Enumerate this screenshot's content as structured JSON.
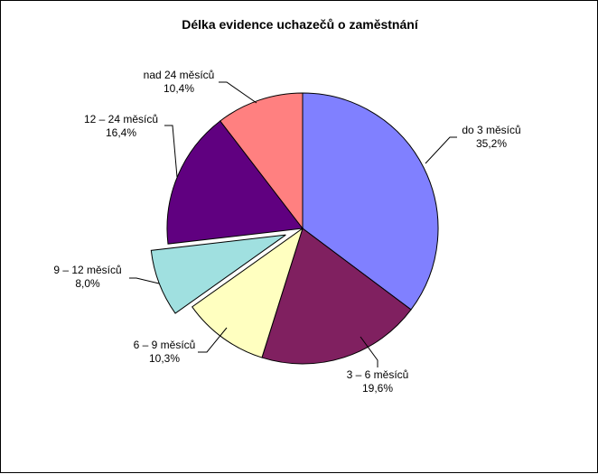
{
  "chart_data": {
    "type": "pie",
    "title": "Délka evidence uchazečů o zaměstnání",
    "slices": [
      {
        "label": "do 3 měsíců",
        "value": 35.2,
        "display": "35,2%",
        "color": "#8080FF",
        "exploded": false
      },
      {
        "label": "3 – 6 měsíců",
        "value": 19.6,
        "display": "19,6%",
        "color": "#802060",
        "exploded": false
      },
      {
        "label": "6 – 9 měsíců",
        "value": 10.3,
        "display": "10,3%",
        "color": "#FFFFC0",
        "exploded": false
      },
      {
        "label": "9 – 12 měsíců",
        "value": 8.0,
        "display": "8,0%",
        "color": "#A0E0E0",
        "exploded": true
      },
      {
        "label": "12 – 24 měsíců",
        "value": 16.4,
        "display": "16,4%",
        "color": "#600080",
        "exploded": false
      },
      {
        "label": "nad 24 měsíců",
        "value": 10.4,
        "display": "10,4%",
        "color": "#FF8080",
        "exploded": false
      }
    ],
    "start_angle": "12 o'clock",
    "direction": "clockwise",
    "legend": "none",
    "data_labels": "outside with leader lines"
  }
}
